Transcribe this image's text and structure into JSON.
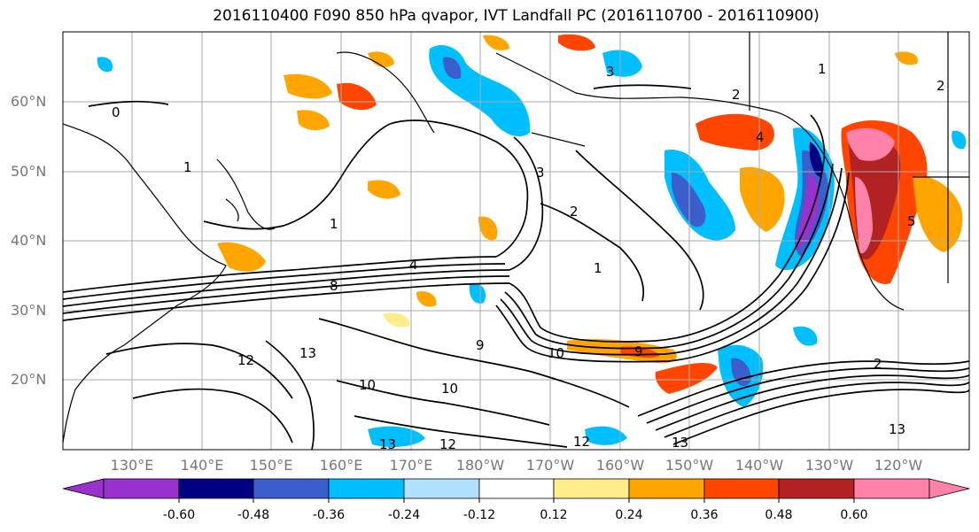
{
  "title": "2016110400 F090 850 hPa qvapor, IVT Landfall PC (2016110700 - 2016110900)",
  "map": {
    "lat_labels": [
      "60°N",
      "50°N",
      "40°N",
      "30°N",
      "20°N"
    ],
    "lon_labels": [
      "130°E",
      "140°E",
      "150°E",
      "160°E",
      "170°E",
      "180°W",
      "170°W",
      "160°W",
      "150°W",
      "140°W",
      "130°W",
      "120°W"
    ],
    "contour_labels": [
      "0",
      "1",
      "1",
      "1",
      "1",
      "2",
      "2",
      "2",
      "3",
      "3",
      "4",
      "4",
      "5",
      "8",
      "9",
      "9",
      "10",
      "10",
      "10",
      "12",
      "12",
      "12",
      "13",
      "13",
      "13",
      "13",
      "2"
    ]
  },
  "colorbar": {
    "tick_labels": [
      "-0.60",
      "-0.48",
      "-0.36",
      "-0.24",
      "-0.12",
      "0.12",
      "0.24",
      "0.36",
      "0.48",
      "0.60"
    ],
    "colors": [
      "#9932cc",
      "#000080",
      "#3a5fcd",
      "#00bfff",
      "#b0e2ff",
      "#ffffff",
      "#ffec8b",
      "#ffa500",
      "#ff4500",
      "#b22222",
      "#ff82ab"
    ]
  }
}
